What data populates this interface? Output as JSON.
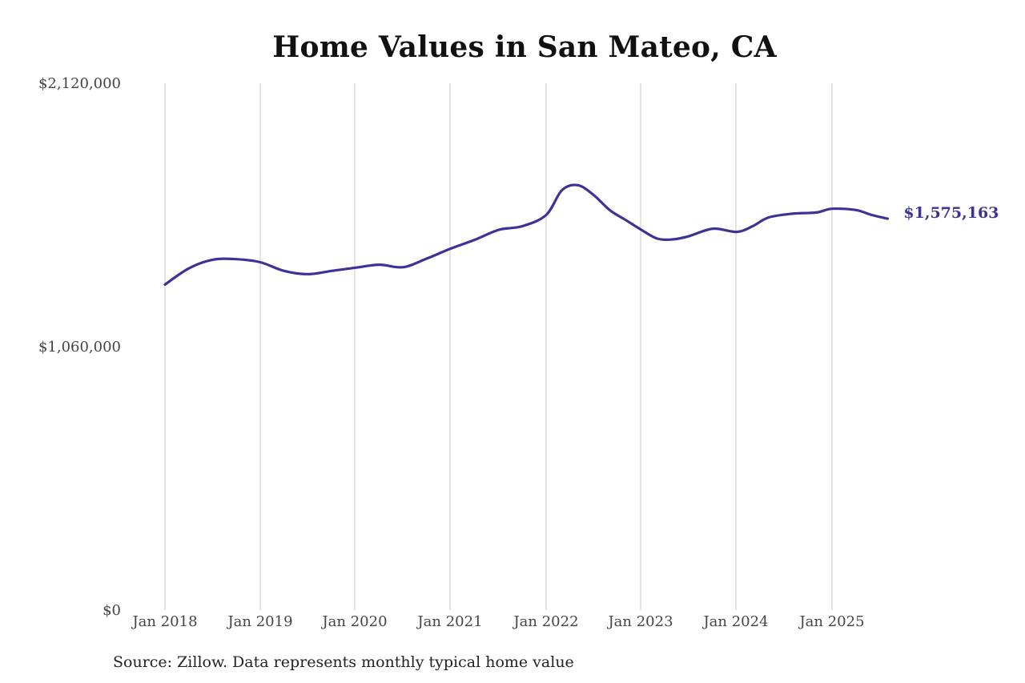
{
  "chart_data": {
    "type": "line",
    "title": "Home Values in San Mateo, CA",
    "xlabel": "",
    "ylabel": "",
    "x_ticks": [
      "Jan 2018",
      "Jan 2019",
      "Jan 2020",
      "Jan 2021",
      "Jan 2022",
      "Jan 2023",
      "Jan 2024",
      "Jan 2025"
    ],
    "y_ticks": [
      "$0",
      "$1,060,000",
      "$2,120,000"
    ],
    "ylim": [
      0,
      2120000
    ],
    "xlim": [
      "2018-01",
      "2025-08"
    ],
    "grid": "vertical",
    "legend": "none",
    "series": [
      {
        "color": "#3b3496",
        "end_label": "$1,575,163",
        "points": [
          [
            "2018-01",
            1310000
          ],
          [
            "2018-04",
            1375000
          ],
          [
            "2018-07",
            1410000
          ],
          [
            "2018-10",
            1412000
          ],
          [
            "2019-01",
            1400000
          ],
          [
            "2019-04",
            1365000
          ],
          [
            "2019-07",
            1352000
          ],
          [
            "2019-10",
            1365000
          ],
          [
            "2020-01",
            1378000
          ],
          [
            "2020-04",
            1390000
          ],
          [
            "2020-07",
            1380000
          ],
          [
            "2020-10",
            1415000
          ],
          [
            "2021-01",
            1455000
          ],
          [
            "2021-04",
            1490000
          ],
          [
            "2021-07",
            1530000
          ],
          [
            "2021-10",
            1545000
          ],
          [
            "2022-01",
            1590000
          ],
          [
            "2022-03",
            1690000
          ],
          [
            "2022-05",
            1710000
          ],
          [
            "2022-07",
            1670000
          ],
          [
            "2022-09",
            1610000
          ],
          [
            "2022-11",
            1570000
          ],
          [
            "2023-01",
            1530000
          ],
          [
            "2023-03",
            1495000
          ],
          [
            "2023-05",
            1492000
          ],
          [
            "2023-07",
            1505000
          ],
          [
            "2023-10",
            1535000
          ],
          [
            "2024-01",
            1522000
          ],
          [
            "2024-03",
            1545000
          ],
          [
            "2024-05",
            1580000
          ],
          [
            "2024-08",
            1595000
          ],
          [
            "2024-11",
            1600000
          ],
          [
            "2025-01",
            1615000
          ],
          [
            "2025-04",
            1610000
          ],
          [
            "2025-06",
            1590000
          ],
          [
            "2025-08",
            1575163
          ]
        ]
      }
    ]
  },
  "source_note": "Source: Zillow. Data represents monthly typical home value"
}
